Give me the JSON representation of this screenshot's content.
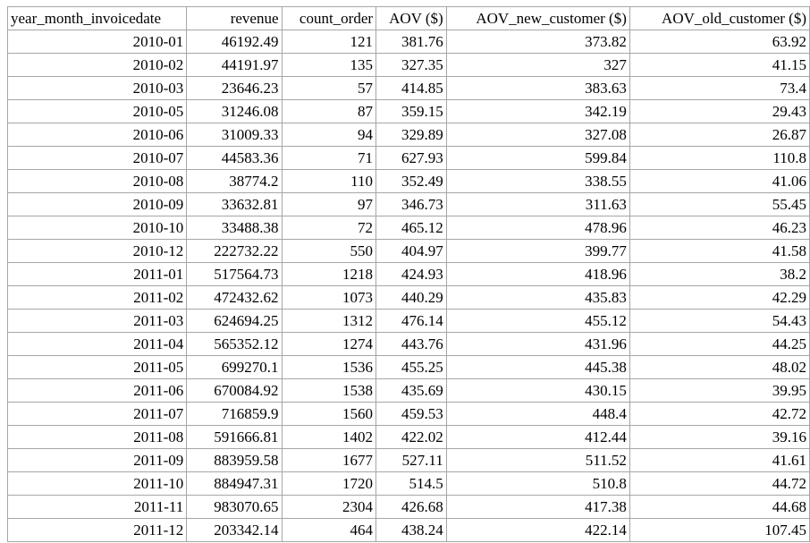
{
  "table": {
    "columns": [
      "year_month_invoicedate",
      "revenue",
      "count_order",
      "AOV ($)",
      "AOV_new_customer ($)",
      "AOV_old_customer ($)"
    ],
    "rows": [
      [
        "2010-01",
        "46192.49",
        "121",
        "381.76",
        "373.82",
        "63.92"
      ],
      [
        "2010-02",
        "44191.97",
        "135",
        "327.35",
        "327",
        "41.15"
      ],
      [
        "2010-03",
        "23646.23",
        "57",
        "414.85",
        "383.63",
        "73.4"
      ],
      [
        "2010-05",
        "31246.08",
        "87",
        "359.15",
        "342.19",
        "29.43"
      ],
      [
        "2010-06",
        "31009.33",
        "94",
        "329.89",
        "327.08",
        "26.87"
      ],
      [
        "2010-07",
        "44583.36",
        "71",
        "627.93",
        "599.84",
        "110.8"
      ],
      [
        "2010-08",
        "38774.2",
        "110",
        "352.49",
        "338.55",
        "41.06"
      ],
      [
        "2010-09",
        "33632.81",
        "97",
        "346.73",
        "311.63",
        "55.45"
      ],
      [
        "2010-10",
        "33488.38",
        "72",
        "465.12",
        "478.96",
        "46.23"
      ],
      [
        "2010-12",
        "222732.22",
        "550",
        "404.97",
        "399.77",
        "41.58"
      ],
      [
        "2011-01",
        "517564.73",
        "1218",
        "424.93",
        "418.96",
        "38.2"
      ],
      [
        "2011-02",
        "472432.62",
        "1073",
        "440.29",
        "435.83",
        "42.29"
      ],
      [
        "2011-03",
        "624694.25",
        "1312",
        "476.14",
        "455.12",
        "54.43"
      ],
      [
        "2011-04",
        "565352.12",
        "1274",
        "443.76",
        "431.96",
        "44.25"
      ],
      [
        "2011-05",
        "699270.1",
        "1536",
        "455.25",
        "445.38",
        "48.02"
      ],
      [
        "2011-06",
        "670084.92",
        "1538",
        "435.69",
        "430.15",
        "39.95"
      ],
      [
        "2011-07",
        "716859.9",
        "1560",
        "459.53",
        "448.4",
        "42.72"
      ],
      [
        "2011-08",
        "591666.81",
        "1402",
        "422.02",
        "412.44",
        "39.16"
      ],
      [
        "2011-09",
        "883959.58",
        "1677",
        "527.11",
        "511.52",
        "41.61"
      ],
      [
        "2011-10",
        "884947.31",
        "1720",
        "514.5",
        "510.8",
        "44.72"
      ],
      [
        "2011-11",
        "983070.65",
        "2304",
        "426.68",
        "417.38",
        "44.68"
      ],
      [
        "2011-12",
        "203342.14",
        "464",
        "438.24",
        "422.14",
        "107.45"
      ]
    ]
  },
  "colors": {
    "grid": "#a6a6a6",
    "text": "#000000",
    "background": "#ffffff"
  }
}
